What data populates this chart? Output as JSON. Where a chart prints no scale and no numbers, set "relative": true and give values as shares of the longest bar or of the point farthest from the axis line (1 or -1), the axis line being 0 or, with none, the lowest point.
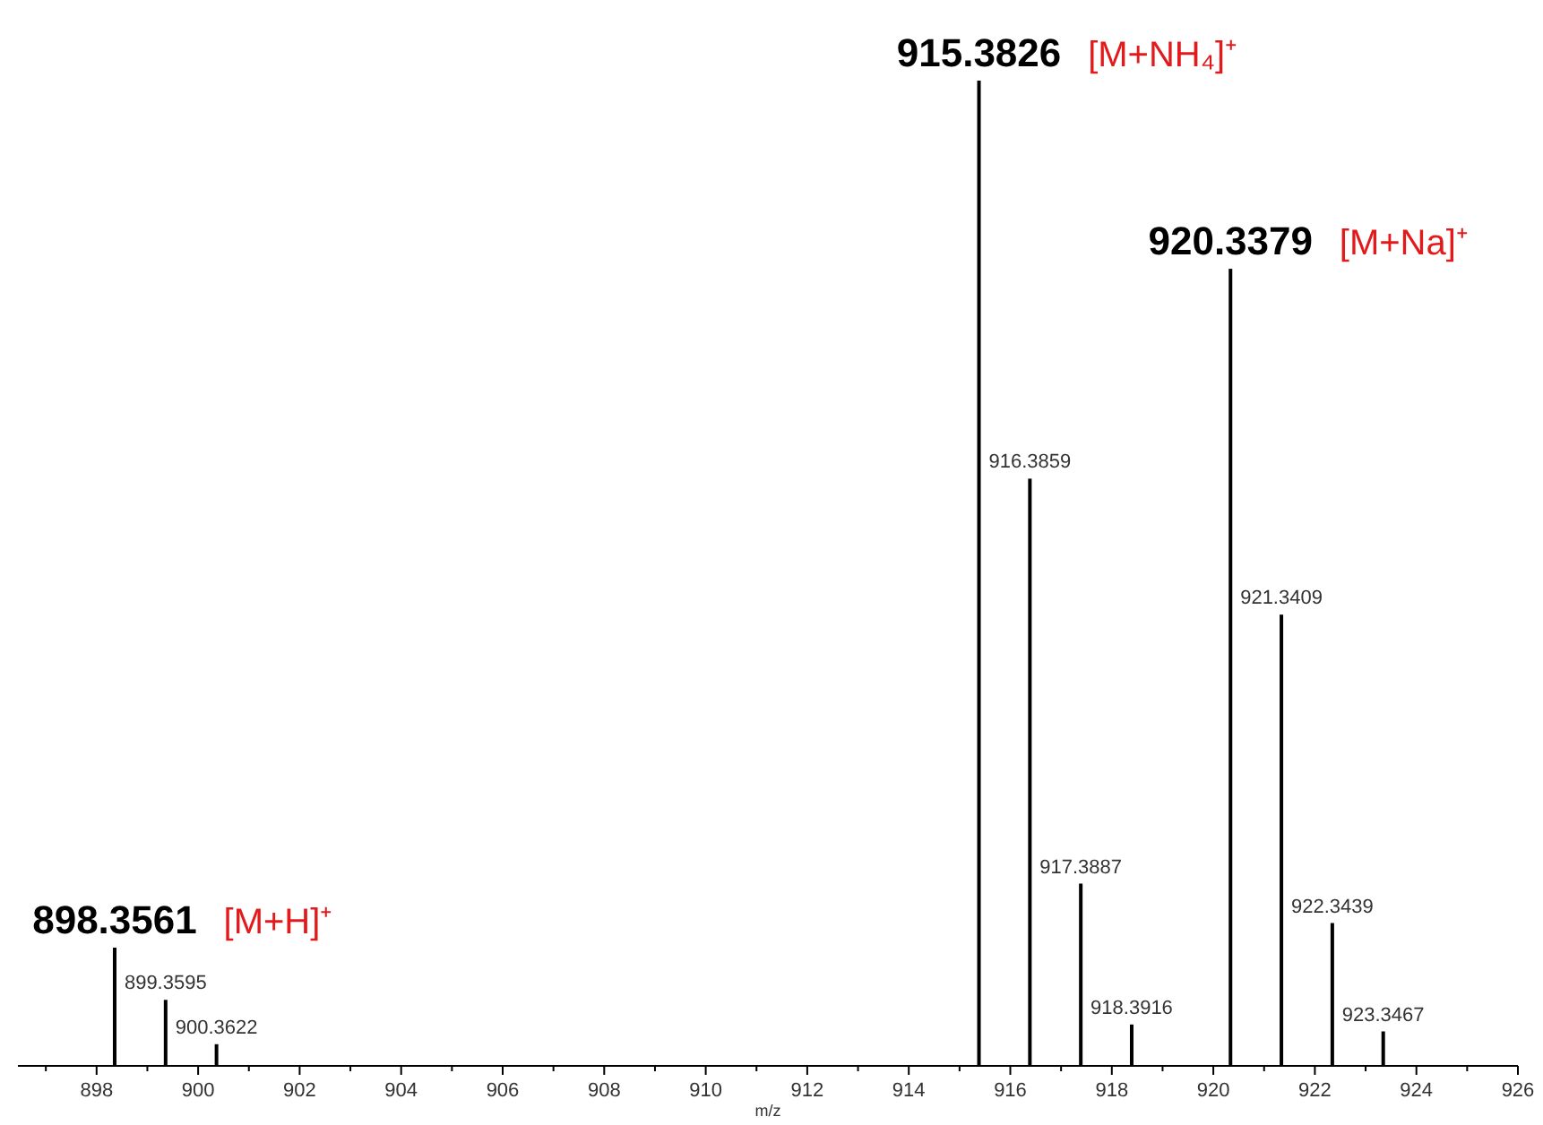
{
  "chart_data": {
    "type": "bar",
    "relative": true,
    "xlabel": "m/z",
    "x": [
      898.3561,
      899.3595,
      900.3622,
      915.3826,
      916.3859,
      917.3887,
      918.3916,
      920.3379,
      921.3409,
      922.3439,
      923.3467
    ],
    "series": [
      {
        "color": "#000000",
        "values": [
          0.12,
          0.067,
          0.022,
          1,
          0.596,
          0.185,
          0.042,
          0.809,
          0.458,
          0.145,
          0.035
        ]
      }
    ],
    "xlim": [
      896.45,
      926
    ],
    "xticks": [
      {
        "value": 897,
        "label": null
      },
      898,
      {
        "value": 899,
        "label": null
      },
      900,
      {
        "value": 901,
        "label": null
      },
      902,
      {
        "value": 903,
        "label": null
      },
      904,
      {
        "value": 905,
        "label": null
      },
      906,
      {
        "value": 907,
        "label": null
      },
      908,
      {
        "value": 909,
        "label": null
      },
      910,
      {
        "value": 911,
        "label": null
      },
      912,
      {
        "value": 913,
        "label": null
      },
      914,
      {
        "value": 915,
        "label": null
      },
      916,
      {
        "value": 917,
        "label": null
      },
      918,
      {
        "value": 919,
        "label": null
      },
      920,
      {
        "value": 921,
        "label": null
      },
      922,
      {
        "value": 923,
        "label": null
      },
      924,
      {
        "value": 925,
        "label": null
      },
      926
    ],
    "annotations": [
      {
        "text": "898.3561",
        "x": 898.3561,
        "y": 0.12
      },
      {
        "text": "899.3595",
        "x": 899.3595,
        "y": 0.067
      },
      {
        "text": "900.3622",
        "x": 900.3622,
        "y": 0.022
      },
      {
        "text": "915.3826",
        "x": 915.3826,
        "y": 1
      },
      {
        "text": "916.3859",
        "x": 916.3859,
        "y": 0.596
      },
      {
        "text": "917.3887",
        "x": 917.3887,
        "y": 0.185
      },
      {
        "text": "918.3916",
        "x": 918.3916,
        "y": 0.042
      },
      {
        "text": "920.3379",
        "x": 920.3379,
        "y": 0.809
      },
      {
        "text": "921.3409",
        "x": 921.3409,
        "y": 0.458
      },
      {
        "text": "922.3439",
        "x": 922.3439,
        "y": 0.145
      },
      {
        "text": "923.3467",
        "x": 923.3467,
        "y": 0.035
      },
      "[M+H]⁺",
      "[M+NH₄]⁺",
      "[M+Na]⁺"
    ]
  }
}
